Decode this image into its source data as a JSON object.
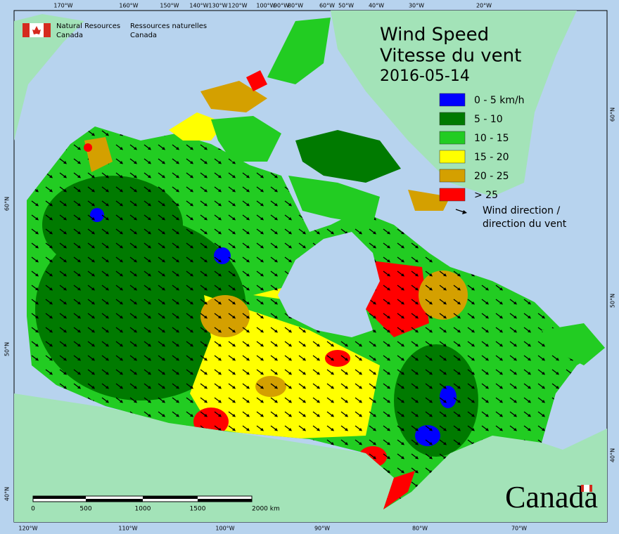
{
  "agency": {
    "en": [
      "Natural Resources",
      "Canada"
    ],
    "fr": [
      "Ressources naturelles",
      "Canada"
    ]
  },
  "title": [
    "Wind Speed",
    "Vitesse du vent",
    "2016-05-14"
  ],
  "legend": {
    "items": [
      {
        "label": "0 - 5 km/h",
        "color": "#0000ff"
      },
      {
        "label": "5 - 10",
        "color": "#007a00"
      },
      {
        "label": "10 - 15",
        "color": "#22cc22"
      },
      {
        "label": "15 - 20",
        "color": "#ffff00"
      },
      {
        "label": "20 - 25",
        "color": "#d4a000"
      },
      {
        "label": "> 25",
        "color": "#ff0000"
      }
    ],
    "arrow": [
      "Wind direction /",
      "direction du vent"
    ]
  },
  "graticule": {
    "top": [
      "170°W",
      "160°W",
      "150°W",
      "140°W",
      "130°W",
      "120°W",
      "100°W",
      "90°W",
      "80°W",
      "60°W",
      "50°W",
      "40°W",
      "30°W",
      "20°W"
    ],
    "bottom": [
      "120°W",
      "110°W",
      "100°W",
      "90°W",
      "80°W",
      "70°W"
    ],
    "left": [
      "60°N",
      "50°N",
      "40°N"
    ],
    "right": [
      "60°N",
      "50°N",
      "40°N"
    ]
  },
  "scale_bar": [
    "0",
    "500",
    "1000",
    "1500",
    "2000 km"
  ],
  "wordmark": "Canada"
}
